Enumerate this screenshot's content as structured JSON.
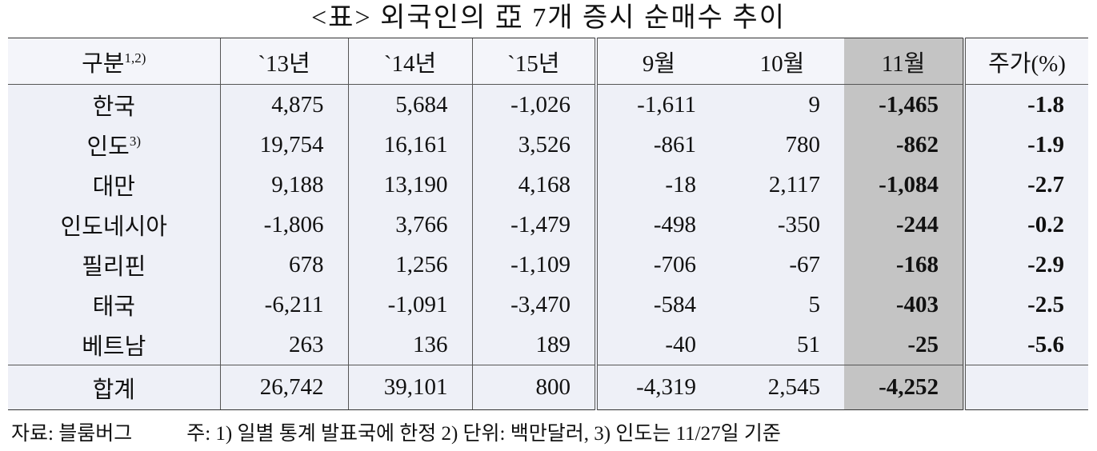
{
  "title": "<표> 외국인의 亞 7개 증시 순매수 추이",
  "table": {
    "header": [
      {
        "text": "구분",
        "note": "1,2)"
      },
      "`13년",
      "`14년",
      "`15년",
      "9월",
      "10월",
      "11월",
      "주가(%)"
    ],
    "rows": [
      [
        {
          "text": "한국"
        },
        "4,875",
        "5,684",
        "-1,026",
        "-1,611",
        "9",
        "-1,465",
        "-1.8"
      ],
      [
        {
          "text": "인도",
          "note": "3)"
        },
        "19,754",
        "16,161",
        "3,526",
        "-861",
        "780",
        "-862",
        "-1.9"
      ],
      [
        {
          "text": "대만"
        },
        "9,188",
        "13,190",
        "4,168",
        "-18",
        "2,117",
        "-1,084",
        "-2.7"
      ],
      [
        {
          "text": "인도네시아"
        },
        "-1,806",
        "3,766",
        "-1,479",
        "-498",
        "-350",
        "-244",
        "-0.2"
      ],
      [
        {
          "text": "필리핀"
        },
        "678",
        "1,256",
        "-1,109",
        "-706",
        "-67",
        "-168",
        "-2.9"
      ],
      [
        {
          "text": "태국"
        },
        "-6,211",
        "-1,091",
        "-3,470",
        "-584",
        "5",
        "-403",
        "-2.5"
      ],
      [
        {
          "text": "베트남"
        },
        "263",
        "136",
        "189",
        "-40",
        "51",
        "-25",
        "-5.6"
      ],
      [
        {
          "text": "합계"
        },
        "26,742",
        "39,101",
        "800",
        "-4,319",
        "2,545",
        "-4,252"
      ]
    ]
  },
  "footnote": {
    "source": "자료: 블룸버그",
    "notes": "주: 1) 일별 통계 발표국에 한정 2) 단위: 백만달러, 3) 인도는 11/27일 기준"
  }
}
